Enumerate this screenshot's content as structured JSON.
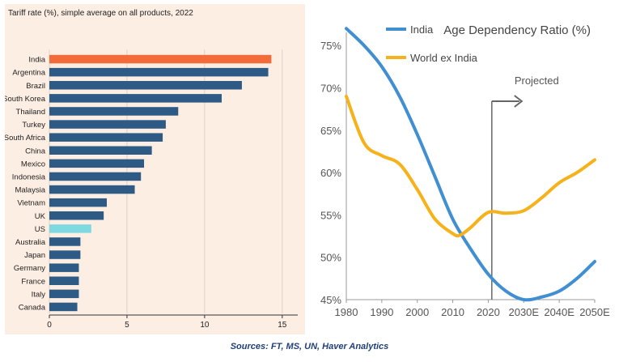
{
  "chart_data": [
    {
      "type": "bar",
      "orientation": "horizontal",
      "title": "Tariff rate (%), simple average on all products, 2022",
      "categories": [
        "India",
        "Argentina",
        "Brazil",
        "South Korea",
        "Thailand",
        "Turkey",
        "South Africa",
        "China",
        "Mexico",
        "Indonesia",
        "Malaysia",
        "Vietnam",
        "UK",
        "US",
        "Australia",
        "Japan",
        "Germany",
        "France",
        "Italy",
        "Canada"
      ],
      "values": [
        14.3,
        14.1,
        12.4,
        11.1,
        8.3,
        7.5,
        7.3,
        6.6,
        6.1,
        5.9,
        5.5,
        3.7,
        3.5,
        2.7,
        2.0,
        2.0,
        1.9,
        1.9,
        1.9,
        1.8
      ],
      "highlight": {
        "India": "#f26b3a",
        "US": "#7fd9e0"
      },
      "bar_color": "#2e5b86",
      "xlim": [
        0,
        16
      ],
      "xticks": [
        0,
        5,
        10,
        15
      ],
      "grid": true
    },
    {
      "type": "line",
      "title": "Age Dependency Ratio (%)",
      "annotation": "Projected",
      "annotation_x": 2021,
      "x_ticks": [
        "1980",
        "1990",
        "2000",
        "2010",
        "2020",
        "2030E",
        "2040E",
        "2050E"
      ],
      "x_tick_values": [
        1980,
        1990,
        2000,
        2010,
        2020,
        2030,
        2040,
        2050
      ],
      "y_ticks": [
        "45%",
        "50%",
        "55%",
        "60%",
        "65%",
        "70%",
        "75%"
      ],
      "y_tick_values": [
        45,
        50,
        55,
        60,
        65,
        70,
        75
      ],
      "ylim": [
        45,
        77.5
      ],
      "xlim": [
        1980,
        2050
      ],
      "legend_position": "top-left",
      "series": [
        {
          "name": "India",
          "color": "#3f8fd2",
          "x": [
            1980,
            1985,
            1990,
            1995,
            2000,
            2005,
            2010,
            2015,
            2020,
            2025,
            2030,
            2035,
            2040,
            2045,
            2050
          ],
          "y": [
            77.0,
            75.0,
            72.5,
            69.0,
            64.5,
            59.5,
            54.5,
            51.0,
            48.0,
            46.0,
            45.0,
            45.3,
            46.0,
            47.5,
            49.5
          ]
        },
        {
          "name": "World ex India",
          "color": "#f6b21b",
          "x": [
            1980,
            1985,
            1990,
            1995,
            2000,
            2005,
            2010,
            2012,
            2015,
            2020,
            2025,
            2030,
            2035,
            2040,
            2045,
            2050
          ],
          "y": [
            69.0,
            63.5,
            62.0,
            61.0,
            58.0,
            54.5,
            52.8,
            52.6,
            53.5,
            55.3,
            55.2,
            55.5,
            57.0,
            58.8,
            60.0,
            61.5
          ]
        }
      ]
    }
  ],
  "source": "Sources: FT, MS, UN, Haver Analytics"
}
